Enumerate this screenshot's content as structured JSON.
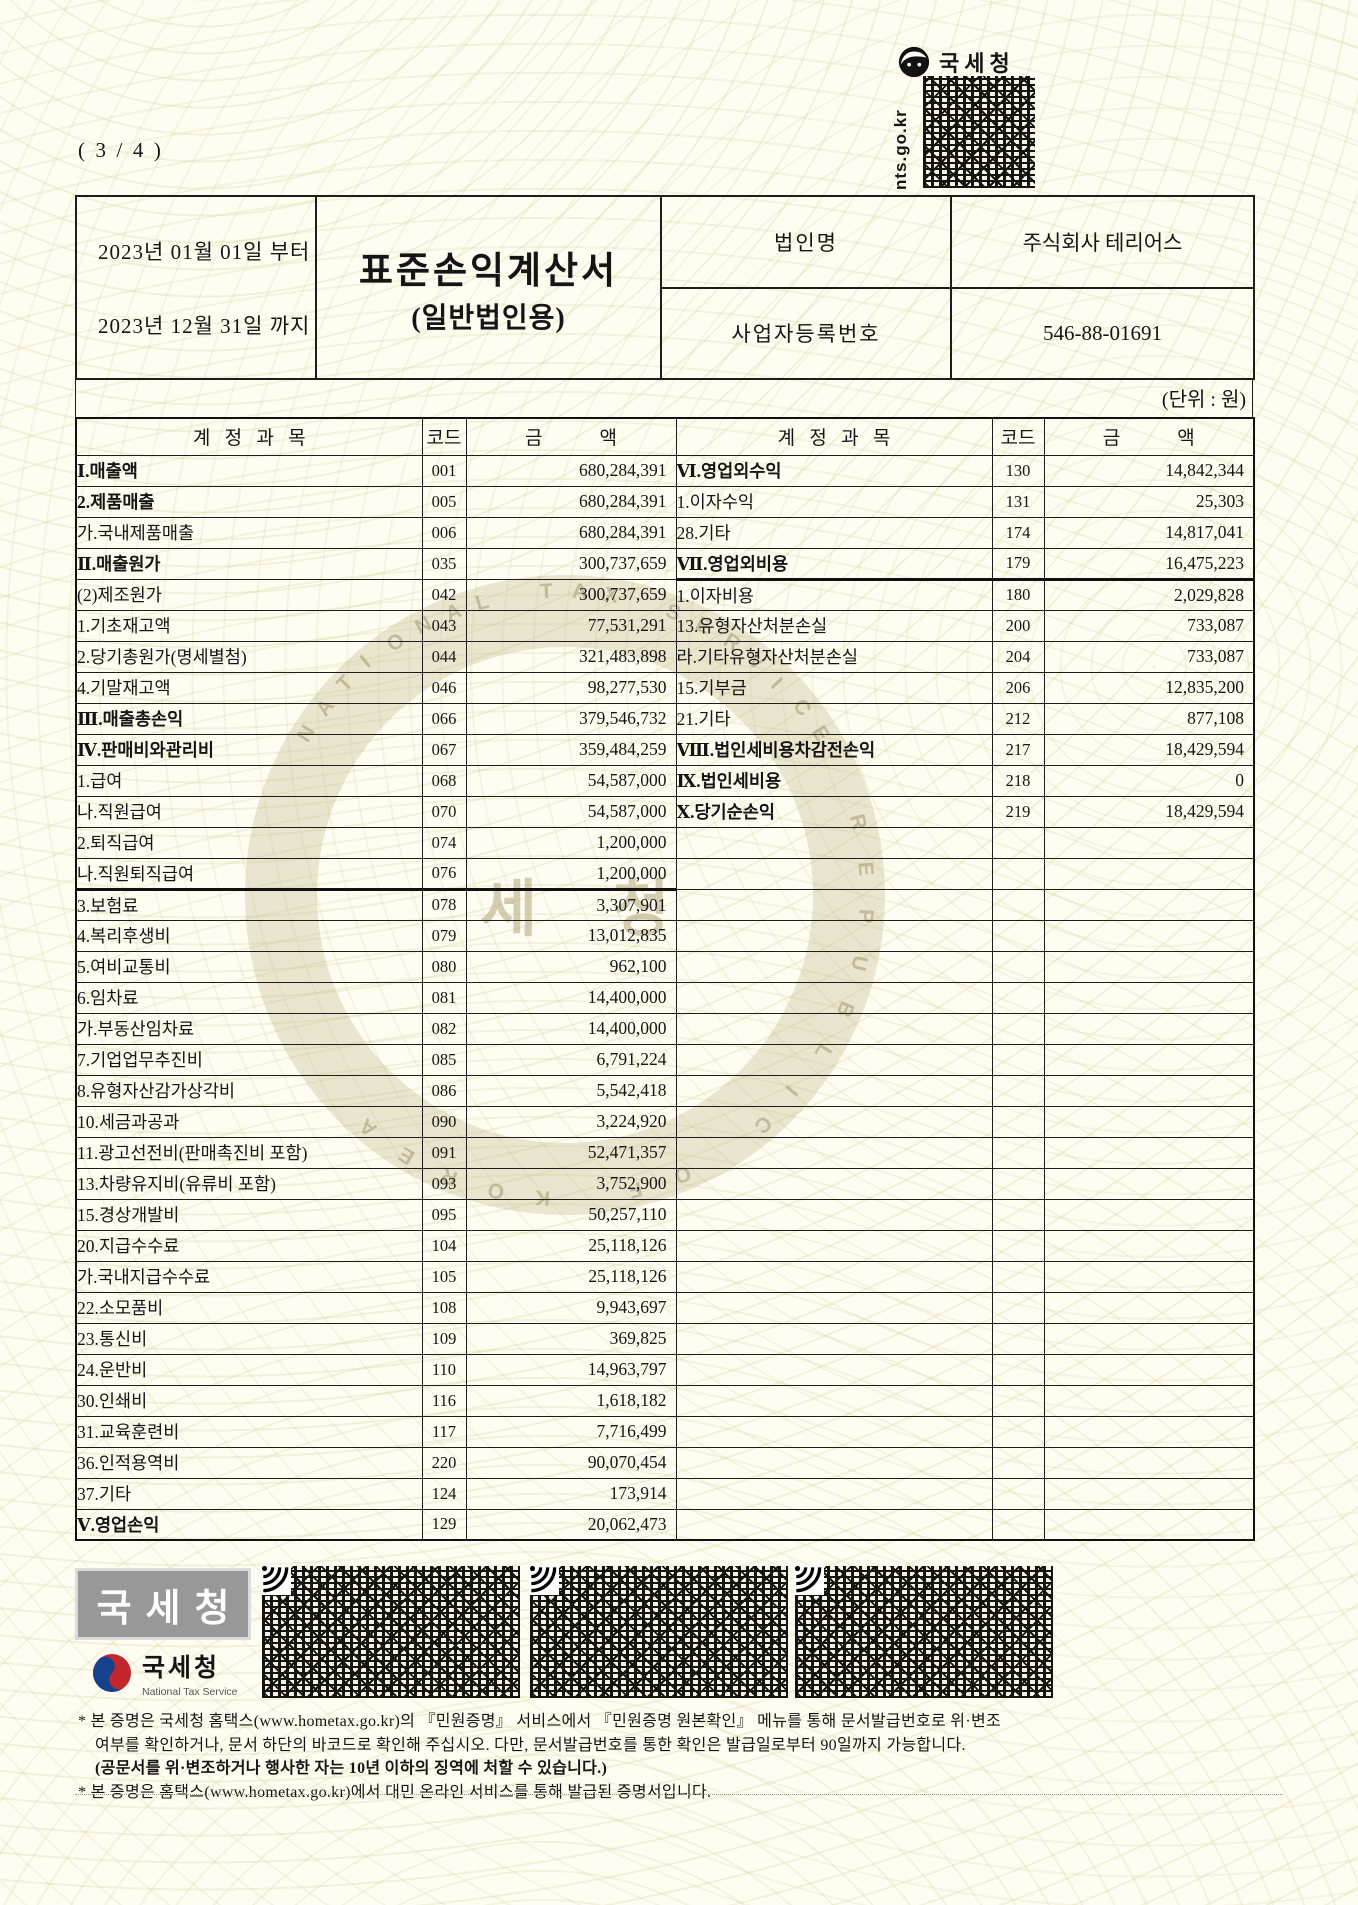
{
  "page": {
    "indicator": "(  3  /  4  )",
    "unit_note": "(단위 : 원)"
  },
  "nts_top": {
    "name": "국세청",
    "url": "nts.go.kr"
  },
  "header": {
    "period_from": "2023년 01월 01일 부터",
    "period_to": "2023년 12월 31일 까지",
    "title": "표준손익계산서",
    "subtitle": "(일반법인용)",
    "fields": [
      {
        "label": "법인명",
        "value": "주식회사 테리어스"
      },
      {
        "label": "사업자등록번호",
        "value": "546-88-01691"
      }
    ]
  },
  "table": {
    "account_header": "계   정   과   목",
    "code_header": "코드",
    "amount_header": "금            액",
    "left_rows": [
      {
        "name": "Ⅰ.매출액",
        "code": "001",
        "amount": "680,284,391",
        "bold": true,
        "indent": 0
      },
      {
        "name": "2.제품매출",
        "code": "005",
        "amount": "680,284,391",
        "bold": true,
        "indent": 0
      },
      {
        "name": "가.국내제품매출",
        "code": "006",
        "amount": "680,284,391",
        "indent": 1
      },
      {
        "name": "Ⅱ.매출원가",
        "code": "035",
        "amount": "300,737,659",
        "bold": true,
        "indent": 0
      },
      {
        "name": "(2)제조원가",
        "code": "042",
        "amount": "300,737,659",
        "indent": 1
      },
      {
        "name": "1.기초재고액",
        "code": "043",
        "amount": "77,531,291",
        "indent": 2
      },
      {
        "name": "2.당기총원가(명세별첨)",
        "code": "044",
        "amount": "321,483,898",
        "indent": 2
      },
      {
        "name": "4.기말재고액",
        "code": "046",
        "amount": "98,277,530",
        "indent": 2
      },
      {
        "name": "Ⅲ.매출총손익",
        "code": "066",
        "amount": "379,546,732",
        "bold": true,
        "indent": 0
      },
      {
        "name": "Ⅳ.판매비와관리비",
        "code": "067",
        "amount": "359,484,259",
        "bold": true,
        "indent": 0
      },
      {
        "name": "1.급여",
        "code": "068",
        "amount": "54,587,000",
        "indent": 1
      },
      {
        "name": "나.직원급여",
        "code": "070",
        "amount": "54,587,000",
        "indent": 2
      },
      {
        "name": "2.퇴직급여",
        "code": "074",
        "amount": "1,200,000",
        "indent": 1
      },
      {
        "name": "나.직원퇴직급여",
        "code": "076",
        "amount": "1,200,000",
        "indent": 2
      },
      {
        "name": "3.보험료",
        "code": "078",
        "amount": "3,307,901",
        "indent": 1,
        "thick_top": true
      },
      {
        "name": "4.복리후생비",
        "code": "079",
        "amount": "13,012,835",
        "indent": 1
      },
      {
        "name": "5.여비교통비",
        "code": "080",
        "amount": "962,100",
        "indent": 1
      },
      {
        "name": "6.임차료",
        "code": "081",
        "amount": "14,400,000",
        "indent": 1
      },
      {
        "name": "가.부동산임차료",
        "code": "082",
        "amount": "14,400,000",
        "indent": 2
      },
      {
        "name": "7.기업업무추진비",
        "code": "085",
        "amount": "6,791,224",
        "indent": 1
      },
      {
        "name": "8.유형자산감가상각비",
        "code": "086",
        "amount": "5,542,418",
        "indent": 1
      },
      {
        "name": "10.세금과공과",
        "code": "090",
        "amount": "3,224,920",
        "indent": 1
      },
      {
        "name": "11.광고선전비(판매촉진비 포함)",
        "code": "091",
        "amount": "52,471,357",
        "indent": 1
      },
      {
        "name": "13.차량유지비(유류비 포함)",
        "code": "093",
        "amount": "3,752,900",
        "indent": 1
      },
      {
        "name": "15.경상개발비",
        "code": "095",
        "amount": "50,257,110",
        "indent": 1
      },
      {
        "name": "20.지급수수료",
        "code": "104",
        "amount": "25,118,126",
        "indent": 1
      },
      {
        "name": "가.국내지급수수료",
        "code": "105",
        "amount": "25,118,126",
        "indent": 2
      },
      {
        "name": "22.소모품비",
        "code": "108",
        "amount": "9,943,697",
        "indent": 1
      },
      {
        "name": "23.통신비",
        "code": "109",
        "amount": "369,825",
        "indent": 1
      },
      {
        "name": "24.운반비",
        "code": "110",
        "amount": "14,963,797",
        "indent": 1
      },
      {
        "name": "30.인쇄비",
        "code": "116",
        "amount": "1,618,182",
        "indent": 1
      },
      {
        "name": "31.교육훈련비",
        "code": "117",
        "amount": "7,716,499",
        "indent": 1
      },
      {
        "name": "36.인적용역비",
        "code": "220",
        "amount": "90,070,454",
        "indent": 1
      },
      {
        "name": "37.기타",
        "code": "124",
        "amount": "173,914",
        "indent": 1
      },
      {
        "name": "Ⅴ.영업손익",
        "code": "129",
        "amount": "20,062,473",
        "bold": true,
        "indent": 0
      }
    ],
    "right_rows": [
      {
        "name": "Ⅵ.영업외수익",
        "code": "130",
        "amount": "14,842,344",
        "bold": true,
        "indent": 0
      },
      {
        "name": "1.이자수익",
        "code": "131",
        "amount": "25,303",
        "indent": 1
      },
      {
        "name": "28.기타",
        "code": "174",
        "amount": "14,817,041",
        "indent": 1
      },
      {
        "name": "Ⅶ.영업외비용",
        "code": "179",
        "amount": "16,475,223",
        "bold": true,
        "indent": 0
      },
      {
        "name": "1.이자비용",
        "code": "180",
        "amount": "2,029,828",
        "indent": 1,
        "thick_top": true
      },
      {
        "name": "13.유형자산처분손실",
        "code": "200",
        "amount": "733,087",
        "indent": 1
      },
      {
        "name": "라.기타유형자산처분손실",
        "code": "204",
        "amount": "733,087",
        "indent": 2
      },
      {
        "name": "15.기부금",
        "code": "206",
        "amount": "12,835,200",
        "indent": 1
      },
      {
        "name": "21.기타",
        "code": "212",
        "amount": "877,108",
        "indent": 1
      },
      {
        "name": "Ⅷ.법인세비용차감전손익",
        "code": "217",
        "amount": "18,429,594",
        "bold": true,
        "indent": 0
      },
      {
        "name": "Ⅸ.법인세비용",
        "code": "218",
        "amount": "0",
        "bold": true,
        "indent": 0
      },
      {
        "name": "Ⅹ.당기순손익",
        "code": "219",
        "amount": "18,429,594",
        "bold": true,
        "indent": 0
      }
    ]
  },
  "watermark": {
    "top_text": "NATIONAL TAX SERVICE",
    "bottom_text": "REPUBLIC OF KOREA",
    "center_text": "세 청"
  },
  "footer": {
    "stamp_text": "국세청",
    "logo_name": "국세청",
    "logo_sub": "National Tax Service",
    "notes": [
      {
        "text": "* 본 증명은 국세청 홈택스(www.hometax.go.kr)의 『민원증명』 서비스에서 『민원증명 원본확인』 메뉴를 통해 문서발급번호로 위·변조",
        "bold": false
      },
      {
        "text": "여부를 확인하거나, 문서 하단의 바코드로 확인해 주십시오. 다만, 문서발급번호를 통한 확인은 발급일로부터 90일까지 가능합니다.",
        "bold": false
      },
      {
        "text": "(공문서를 위·변조하거나 행사한 자는 10년 이하의 징역에 처할 수 있습니다.)",
        "bold": true
      },
      {
        "text": "* 본 증명은 홈택스(www.hometax.go.kr)에서 대민 온라인 서비스를 통해 발급된 증명서입니다.",
        "bold": false
      }
    ]
  }
}
